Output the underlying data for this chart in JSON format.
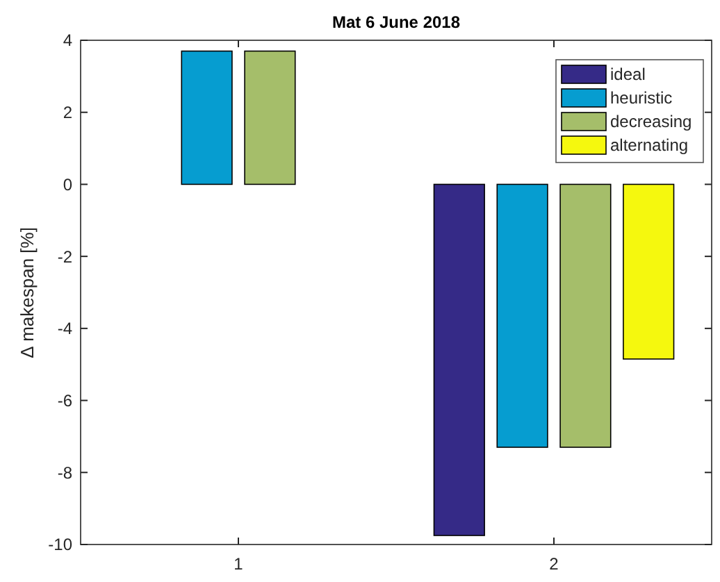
{
  "chart_data": {
    "type": "bar",
    "title": "Mat 6 June 2018",
    "ylabel": "∆ makespan [%]",
    "categories": [
      "1",
      "2"
    ],
    "series": [
      {
        "name": "ideal",
        "color": "#352a87",
        "values": [
          0,
          -9.75
        ]
      },
      {
        "name": "heuristic",
        "color": "#069dd0",
        "values": [
          3.7,
          -7.3
        ]
      },
      {
        "name": "decreasing",
        "color": "#a5be6a",
        "values": [
          3.7,
          -7.3
        ]
      },
      {
        "name": "alternating",
        "color": "#f5f80e",
        "values": [
          0,
          -4.85
        ]
      }
    ],
    "ylim": [
      -10,
      4
    ],
    "yticks": [
      -10,
      -8,
      -6,
      -4,
      -2,
      0,
      2,
      4
    ],
    "grid": false,
    "legend": "top right"
  }
}
